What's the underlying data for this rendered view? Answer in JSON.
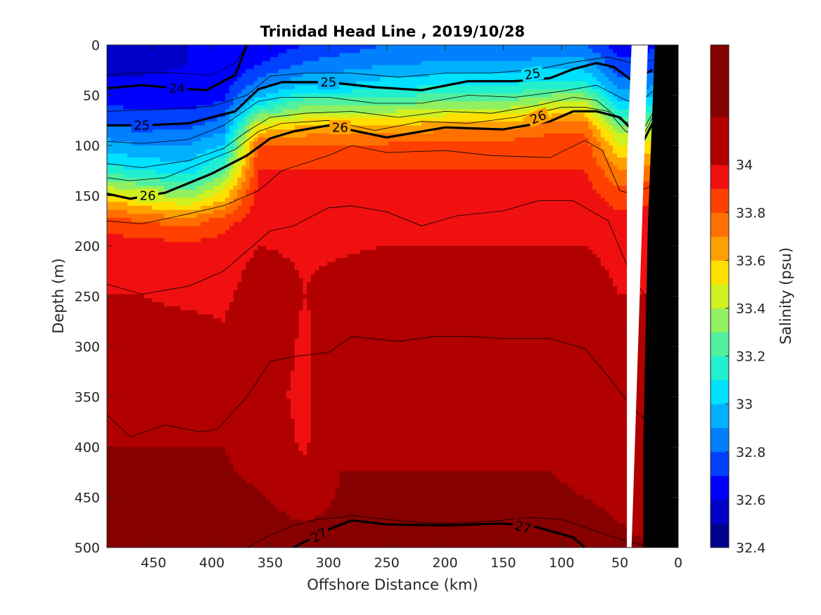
{
  "chart_data": {
    "type": "heatmap",
    "title": "Trinidad Head Line , 2019/10/28",
    "xlabel": "Offshore Distance (km)",
    "ylabel": "Depth (m)",
    "colorbar_label": "Salinity (psu)",
    "x_axis": {
      "range": [
        490,
        0
      ],
      "reversed": true,
      "ticks": [
        450,
        400,
        350,
        300,
        250,
        200,
        150,
        100,
        50,
        0
      ]
    },
    "y_axis": {
      "range": [
        0,
        500
      ],
      "reversed": true,
      "ticks": [
        0,
        50,
        100,
        150,
        200,
        250,
        300,
        350,
        400,
        450,
        500
      ]
    },
    "colorbar": {
      "range": [
        32.4,
        34.5
      ],
      "ticks": [
        32.4,
        32.6,
        32.8,
        33,
        33.2,
        33.4,
        33.6,
        33.8,
        34
      ],
      "tick_labels": [
        "32.4",
        "32.6",
        "32.8",
        "33",
        "33.2",
        "33.4",
        "33.6",
        "33.8",
        "34"
      ],
      "levels": [
        {
          "from": 32.4,
          "to": 32.5,
          "color": "#00008f"
        },
        {
          "from": 32.5,
          "to": 32.6,
          "color": "#0000c8"
        },
        {
          "from": 32.6,
          "to": 32.7,
          "color": "#0000ff"
        },
        {
          "from": 32.7,
          "to": 32.8,
          "color": "#0040ff"
        },
        {
          "from": 32.8,
          "to": 32.9,
          "color": "#0080ff"
        },
        {
          "from": 32.9,
          "to": 33.0,
          "color": "#00b0ff"
        },
        {
          "from": 33.0,
          "to": 33.1,
          "color": "#00e0ff"
        },
        {
          "from": 33.1,
          "to": 33.2,
          "color": "#20f0d0"
        },
        {
          "from": 33.2,
          "to": 33.3,
          "color": "#50f0a0"
        },
        {
          "from": 33.3,
          "to": 33.4,
          "color": "#90f060"
        },
        {
          "from": 33.4,
          "to": 33.5,
          "color": "#d0f020"
        },
        {
          "from": 33.5,
          "to": 33.6,
          "color": "#ffe000"
        },
        {
          "from": 33.6,
          "to": 33.7,
          "color": "#ffa000"
        },
        {
          "from": 33.7,
          "to": 33.8,
          "color": "#ff7000"
        },
        {
          "from": 33.8,
          "to": 33.9,
          "color": "#ff4000"
        },
        {
          "from": 33.9,
          "to": 34.0,
          "color": "#f01010"
        },
        {
          "from": 34.0,
          "to": 34.2,
          "color": "#b00000"
        },
        {
          "from": 34.2,
          "to": 34.5,
          "color": "#860000"
        }
      ]
    },
    "salinity_profile": {
      "depths": [
        0,
        20,
        40,
        60,
        80,
        100,
        125,
        150,
        175,
        200,
        250,
        300,
        350,
        400,
        450,
        500
      ],
      "stations": [
        {
          "x": 490,
          "values": [
            32.55,
            32.58,
            32.62,
            32.7,
            32.8,
            32.95,
            33.15,
            33.55,
            33.85,
            33.95,
            34.0,
            34.05,
            34.1,
            34.2,
            34.25,
            34.28
          ]
        },
        {
          "x": 460,
          "values": [
            32.55,
            32.58,
            32.62,
            32.68,
            32.78,
            32.9,
            33.1,
            33.45,
            33.8,
            33.95,
            34.0,
            34.05,
            34.1,
            34.2,
            34.25,
            34.28
          ]
        },
        {
          "x": 420,
          "values": [
            32.6,
            32.6,
            32.62,
            32.68,
            32.78,
            32.9,
            33.05,
            33.35,
            33.75,
            33.93,
            33.98,
            34.05,
            34.12,
            34.2,
            34.25,
            34.28
          ]
        },
        {
          "x": 390,
          "values": [
            32.6,
            32.62,
            32.65,
            32.72,
            32.85,
            33.0,
            33.25,
            33.55,
            33.85,
            33.95,
            33.98,
            34.02,
            34.12,
            34.2,
            34.25,
            34.3
          ]
        },
        {
          "x": 360,
          "values": [
            32.62,
            32.7,
            32.85,
            33.1,
            33.5,
            33.8,
            33.9,
            33.95,
            33.97,
            34.0,
            34.05,
            34.08,
            34.05,
            34.1,
            34.22,
            34.3
          ]
        },
        {
          "x": 320,
          "values": [
            32.7,
            32.82,
            33.0,
            33.3,
            33.6,
            33.8,
            33.9,
            33.95,
            33.97,
            33.99,
            34.0,
            33.98,
            33.97,
            33.98,
            34.1,
            34.3
          ]
        },
        {
          "x": 290,
          "values": [
            32.75,
            32.85,
            33.0,
            33.3,
            33.6,
            33.8,
            33.9,
            33.95,
            33.97,
            33.99,
            34.03,
            34.1,
            34.12,
            34.18,
            34.22,
            34.28
          ]
        },
        {
          "x": 250,
          "values": [
            32.8,
            32.9,
            33.05,
            33.3,
            33.6,
            33.82,
            33.9,
            33.95,
            33.97,
            34.0,
            34.05,
            34.12,
            34.15,
            34.18,
            34.22,
            34.28
          ]
        },
        {
          "x": 200,
          "values": [
            32.8,
            32.92,
            33.1,
            33.35,
            33.65,
            33.85,
            33.9,
            33.95,
            33.97,
            34.0,
            34.04,
            34.12,
            34.15,
            34.18,
            34.22,
            34.28
          ]
        },
        {
          "x": 150,
          "values": [
            32.8,
            32.92,
            33.1,
            33.35,
            33.65,
            33.85,
            33.9,
            33.95,
            33.97,
            34.0,
            34.05,
            34.12,
            34.15,
            34.18,
            34.22,
            34.28
          ]
        },
        {
          "x": 110,
          "values": [
            32.82,
            32.95,
            33.15,
            33.45,
            33.75,
            33.87,
            33.9,
            33.95,
            33.97,
            34.0,
            34.06,
            34.12,
            34.15,
            34.18,
            34.22,
            34.28
          ]
        },
        {
          "x": 80,
          "values": [
            32.8,
            32.95,
            33.15,
            33.45,
            33.75,
            33.86,
            33.9,
            33.95,
            33.97,
            34.0,
            34.05,
            34.1,
            34.13,
            34.15,
            34.2,
            34.25
          ]
        },
        {
          "x": 50,
          "values": [
            32.65,
            32.72,
            32.85,
            33.05,
            33.3,
            33.5,
            33.7,
            33.85,
            33.93,
            33.97,
            34.0,
            34.05,
            34.1,
            34.14,
            34.18,
            34.22
          ]
        },
        {
          "x": 22,
          "values": [
            32.68,
            32.75,
            32.88,
            33.1,
            33.35,
            33.55,
            33.75,
            33.87,
            33.95,
            33.98,
            34.0,
            34.05,
            34.1,
            34.13,
            34.16,
            34.2
          ]
        }
      ]
    },
    "density_contours": {
      "bold": [
        {
          "label": "24",
          "x": [
            490,
            460,
            430,
            405,
            380,
            370
          ],
          "y": [
            43,
            40,
            43,
            45,
            30,
            0
          ]
        },
        {
          "label": "25",
          "x": [
            490,
            460,
            420,
            380,
            360,
            340,
            300,
            260,
            220,
            180,
            140,
            110,
            90,
            70,
            55,
            40,
            22
          ],
          "y": [
            80,
            80,
            78,
            66,
            44,
            37,
            37,
            42,
            45,
            36,
            36,
            33,
            24,
            18,
            22,
            35,
            25
          ]
        },
        {
          "label": "26",
          "x": [
            490,
            470,
            440,
            400,
            370,
            350,
            330,
            300,
            250,
            200,
            150,
            110,
            90,
            70,
            50,
            30,
            22
          ],
          "y": [
            148,
            153,
            147,
            128,
            110,
            93,
            86,
            80,
            92,
            82,
            84,
            76,
            66,
            66,
            72,
            96,
            78
          ]
        },
        {
          "label": "27",
          "x": [
            330,
            300,
            280,
            250,
            200,
            150,
            120,
            90,
            80
          ],
          "y": [
            500,
            482,
            473,
            477,
            478,
            476,
            480,
            490,
            500
          ]
        }
      ],
      "thin": [
        {
          "x": [
            490,
            470,
            430,
            400,
            380,
            370
          ],
          "y": [
            30,
            28,
            28,
            30,
            18,
            0
          ]
        },
        {
          "x": [
            490,
            440,
            400,
            370,
            350,
            320,
            280,
            240,
            200,
            160,
            120,
            90,
            60,
            40,
            22
          ],
          "y": [
            66,
            64,
            61,
            50,
            31,
            28,
            28,
            32,
            28,
            28,
            24,
            17,
            12,
            18,
            15
          ]
        },
        {
          "x": [
            490,
            460,
            420,
            390,
            360,
            340,
            300,
            260,
            220,
            180,
            140,
            100,
            70,
            50,
            35,
            22
          ],
          "y": [
            96,
            98,
            94,
            80,
            56,
            52,
            52,
            58,
            58,
            50,
            52,
            46,
            40,
            52,
            60,
            46
          ]
        },
        {
          "x": [
            490,
            460,
            420,
            390,
            370,
            350,
            320,
            280,
            240,
            200,
            160,
            120,
            90,
            70,
            50,
            30,
            22
          ],
          "y": [
            118,
            122,
            115,
            103,
            86,
            72,
            68,
            66,
            72,
            66,
            68,
            60,
            52,
            55,
            74,
            84,
            68
          ]
        },
        {
          "x": [
            490,
            470,
            440,
            410,
            380,
            360,
            340,
            300,
            260,
            220,
            180,
            140,
            100,
            80,
            60,
            45,
            30,
            22
          ],
          "y": [
            132,
            135,
            132,
            118,
            104,
            86,
            78,
            75,
            85,
            76,
            78,
            72,
            62,
            62,
            66,
            86,
            90,
            72
          ]
        },
        {
          "x": [
            490,
            460,
            420,
            390,
            360,
            340,
            300,
            280,
            250,
            200,
            160,
            110,
            80,
            65,
            50,
            40,
            22
          ],
          "y": [
            175,
            178,
            168,
            160,
            145,
            125,
            110,
            100,
            107,
            105,
            110,
            112,
            95,
            105,
            145,
            148,
            140
          ]
        },
        {
          "x": [
            490,
            460,
            420,
            390,
            370,
            350,
            330,
            300,
            280,
            250,
            220,
            190,
            150,
            120,
            90,
            60,
            40,
            22
          ],
          "y": [
            238,
            248,
            240,
            225,
            205,
            185,
            180,
            162,
            160,
            166,
            180,
            170,
            165,
            155,
            155,
            175,
            230,
            260
          ]
        },
        {
          "x": [
            490,
            470,
            440,
            410,
            395,
            370,
            350,
            330,
            300,
            280,
            240,
            210,
            180,
            150,
            110,
            80,
            60,
            40,
            22
          ],
          "y": [
            368,
            390,
            378,
            385,
            382,
            350,
            315,
            310,
            306,
            290,
            295,
            290,
            290,
            292,
            292,
            302,
            330,
            360,
            380
          ]
        },
        {
          "x": [
            370,
            350,
            330,
            310,
            290,
            280,
            250,
            220,
            200,
            160,
            130,
            100,
            80,
            60,
            40,
            22
          ],
          "y": [
            500,
            488,
            478,
            472,
            470,
            468,
            472,
            475,
            476,
            474,
            470,
            472,
            480,
            488,
            495,
            500
          ]
        }
      ]
    },
    "seafloor": {
      "x": [
        0,
        20,
        26,
        30,
        30,
        0
      ],
      "y": [
        0,
        0,
        180,
        400,
        500,
        500
      ]
    },
    "nodata_strip": {
      "x": [
        26,
        32,
        40,
        44,
        44,
        44,
        40
      ],
      "y": [
        0,
        0,
        0,
        120,
        300,
        500,
        500
      ]
    }
  }
}
